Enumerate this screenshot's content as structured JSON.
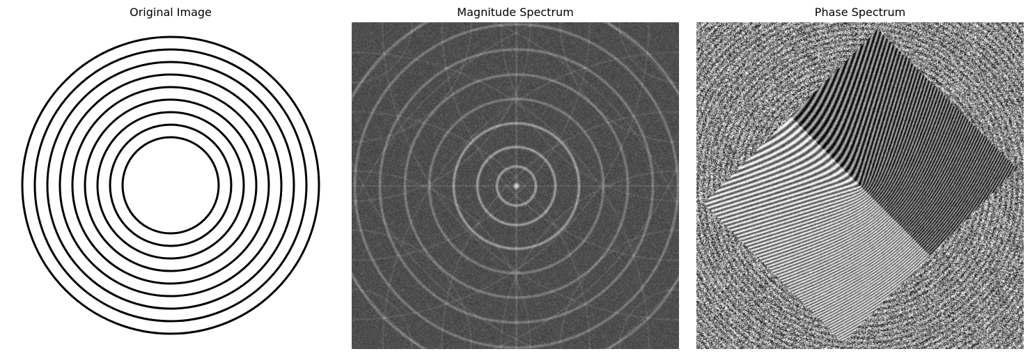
{
  "panels": [
    {
      "title": "Original Image"
    },
    {
      "title": "Magnitude Spectrum"
    },
    {
      "title": "Phase Spectrum"
    }
  ],
  "original_image": {
    "ring_count": 9,
    "ring_color": "#000000",
    "background": "#ffffff"
  },
  "magnitude_spectrum": {
    "colormap": "gray",
    "background_level": "#555555"
  },
  "phase_spectrum": {
    "colormap": "gray"
  }
}
